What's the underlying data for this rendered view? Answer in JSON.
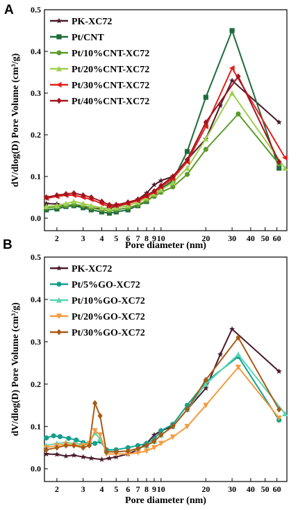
{
  "chart_data": [
    {
      "type": "line",
      "panel_label": "A",
      "xlabel": "Pore diameter (nm)",
      "ylabel": "dV/dlog(D) Pore Volume (cm³/g)",
      "xscale": "log",
      "xlim": [
        1.65,
        70
      ],
      "ylim": [
        -0.03,
        0.5
      ],
      "xticks": [
        2,
        3,
        4,
        5,
        6,
        7,
        8,
        9,
        10,
        20,
        30,
        40,
        50,
        60
      ],
      "xtick_labels": [
        "2",
        "3",
        "4",
        "5",
        "6",
        "7",
        "8",
        "9",
        "10",
        "20",
        "30",
        "40",
        "50",
        "60"
      ],
      "yticks": [
        0.0,
        0.1,
        0.2,
        0.3,
        0.4,
        0.5
      ],
      "ytick_labels": [
        "0.0",
        "0.1",
        "0.2",
        "0.3",
        "0.4",
        "0.5"
      ],
      "legend_position": "top-left",
      "series": [
        {
          "name": "PK-XC72",
          "color": "#4a1a2c",
          "marker": "star",
          "x": [
            1.7,
            2,
            2.3,
            2.6,
            3,
            3.4,
            4,
            4.5,
            5,
            6,
            7,
            8,
            9,
            10,
            12,
            15,
            20,
            25,
            30,
            62
          ],
          "y": [
            0.035,
            0.034,
            0.03,
            0.032,
            0.028,
            0.025,
            0.022,
            0.025,
            0.028,
            0.035,
            0.045,
            0.06,
            0.08,
            0.09,
            0.1,
            0.14,
            0.19,
            0.27,
            0.33,
            0.23
          ]
        },
        {
          "name": "Pt/CNT",
          "color": "#1e6b3a",
          "marker": "square",
          "x": [
            1.7,
            2,
            2.3,
            2.6,
            3,
            3.4,
            4,
            4.5,
            5,
            6,
            7,
            8,
            9,
            10,
            12,
            15,
            20,
            30,
            62
          ],
          "y": [
            0.02,
            0.022,
            0.028,
            0.03,
            0.025,
            0.02,
            0.015,
            0.012,
            0.015,
            0.02,
            0.03,
            0.04,
            0.055,
            0.07,
            0.09,
            0.16,
            0.29,
            0.45,
            0.12
          ]
        },
        {
          "name": "Pt/10%CNT-XC72",
          "color": "#5a9a2a",
          "marker": "circle",
          "x": [
            1.7,
            2,
            2.3,
            2.6,
            3,
            3.4,
            4,
            4.5,
            5,
            6,
            7,
            8,
            9,
            10,
            12,
            15,
            20,
            33,
            62
          ],
          "y": [
            0.025,
            0.027,
            0.03,
            0.033,
            0.03,
            0.025,
            0.02,
            0.018,
            0.02,
            0.025,
            0.032,
            0.042,
            0.052,
            0.062,
            0.075,
            0.105,
            0.165,
            0.25,
            0.13
          ]
        },
        {
          "name": "Pt/20%CNT-XC72",
          "color": "#9fcf4f",
          "marker": "triangle",
          "x": [
            1.7,
            2,
            2.3,
            2.6,
            3,
            3.4,
            4,
            4.5,
            5,
            6,
            7,
            8,
            9,
            10,
            12,
            15,
            20,
            30,
            68
          ],
          "y": [
            0.028,
            0.03,
            0.035,
            0.04,
            0.035,
            0.03,
            0.025,
            0.022,
            0.025,
            0.03,
            0.038,
            0.048,
            0.058,
            0.068,
            0.085,
            0.12,
            0.19,
            0.3,
            0.12
          ]
        },
        {
          "name": "Pt/30%CNT-XC72",
          "color": "#e2201c",
          "marker": "triangle-left",
          "x": [
            1.7,
            2,
            2.3,
            2.6,
            3,
            3.4,
            4,
            4.5,
            5,
            6,
            7,
            8,
            9,
            10,
            12,
            15,
            20,
            30,
            68
          ],
          "y": [
            0.048,
            0.052,
            0.055,
            0.055,
            0.05,
            0.045,
            0.035,
            0.028,
            0.03,
            0.035,
            0.042,
            0.052,
            0.062,
            0.075,
            0.095,
            0.135,
            0.22,
            0.36,
            0.145
          ]
        },
        {
          "name": "Pt/40%CNT-XC72",
          "color": "#a3141d",
          "marker": "diamond",
          "x": [
            1.7,
            2,
            2.3,
            2.6,
            3,
            3.4,
            4,
            4.5,
            5,
            6,
            7,
            8,
            9,
            10,
            12,
            15,
            20,
            33,
            62
          ],
          "y": [
            0.05,
            0.055,
            0.058,
            0.06,
            0.055,
            0.05,
            0.04,
            0.032,
            0.032,
            0.038,
            0.045,
            0.055,
            0.065,
            0.078,
            0.1,
            0.14,
            0.23,
            0.34,
            0.135
          ]
        }
      ]
    },
    {
      "type": "line",
      "panel_label": "B",
      "xlabel": "Pore diameter (nm)",
      "ylabel": "dV/dlog(D) Pore Volume (cm³/g)",
      "xscale": "log",
      "xlim": [
        1.65,
        70
      ],
      "ylim": [
        -0.03,
        0.5
      ],
      "xticks": [
        2,
        3,
        4,
        5,
        6,
        7,
        8,
        9,
        10,
        20,
        30,
        40,
        50,
        60
      ],
      "xtick_labels": [
        "2",
        "3",
        "4",
        "5",
        "6",
        "7",
        "8",
        "9",
        "10",
        "20",
        "30",
        "40",
        "50",
        "60"
      ],
      "yticks": [
        0.0,
        0.1,
        0.2,
        0.3,
        0.4,
        0.5
      ],
      "ytick_labels": [
        "0.0",
        "0.1",
        "0.2",
        "0.3",
        "0.4",
        "0.5"
      ],
      "legend_position": "top-left",
      "series": [
        {
          "name": "PK-XC72",
          "color": "#4a1a2c",
          "marker": "star",
          "x": [
            1.7,
            2,
            2.3,
            2.6,
            3,
            3.4,
            4,
            4.5,
            5,
            6,
            7,
            8,
            9,
            10,
            12,
            15,
            20,
            25,
            30,
            62
          ],
          "y": [
            0.035,
            0.034,
            0.03,
            0.032,
            0.028,
            0.025,
            0.022,
            0.025,
            0.028,
            0.035,
            0.045,
            0.06,
            0.08,
            0.09,
            0.1,
            0.14,
            0.19,
            0.27,
            0.33,
            0.23
          ]
        },
        {
          "name": "Pt/5%GO-XC72",
          "color": "#14a08c",
          "marker": "circle",
          "x": [
            1.7,
            1.9,
            2.1,
            2.4,
            2.7,
            3,
            3.3,
            3.6,
            3.9,
            4.3,
            5,
            6,
            7,
            8,
            9,
            10,
            12,
            15,
            20,
            33,
            62
          ],
          "y": [
            0.073,
            0.078,
            0.076,
            0.072,
            0.068,
            0.062,
            0.06,
            0.06,
            0.065,
            0.045,
            0.045,
            0.05,
            0.055,
            0.06,
            0.07,
            0.09,
            0.105,
            0.15,
            0.205,
            0.265,
            0.115
          ]
        },
        {
          "name": "Pt/10%GO-XC72",
          "color": "#56d6b4",
          "marker": "triangle",
          "x": [
            1.7,
            2,
            2.3,
            2.6,
            3,
            3.3,
            3.6,
            3.9,
            4.3,
            5,
            6,
            7,
            8,
            9,
            10,
            12,
            15,
            20,
            33,
            68
          ],
          "y": [
            0.055,
            0.06,
            0.062,
            0.06,
            0.058,
            0.06,
            0.085,
            0.07,
            0.042,
            0.04,
            0.042,
            0.048,
            0.055,
            0.065,
            0.08,
            0.1,
            0.14,
            0.2,
            0.27,
            0.13
          ]
        },
        {
          "name": "Pt/20%GO-XC72",
          "color": "#f59a3e",
          "marker": "triangle-down",
          "x": [
            1.7,
            2,
            2.3,
            2.6,
            3,
            3.3,
            3.6,
            3.9,
            4.3,
            5,
            6,
            7,
            8,
            9,
            10,
            12,
            15,
            20,
            33,
            62
          ],
          "y": [
            0.05,
            0.055,
            0.058,
            0.056,
            0.055,
            0.06,
            0.09,
            0.08,
            0.035,
            0.035,
            0.035,
            0.038,
            0.042,
            0.05,
            0.06,
            0.075,
            0.1,
            0.15,
            0.24,
            0.12
          ]
        },
        {
          "name": "Pt/30%GO-XC72",
          "color": "#a85a14",
          "marker": "diamond",
          "x": [
            1.7,
            2,
            2.3,
            2.6,
            3,
            3.3,
            3.6,
            3.9,
            4.3,
            5,
            6,
            7,
            8,
            9,
            10,
            12,
            15,
            20,
            33,
            62
          ],
          "y": [
            0.045,
            0.05,
            0.055,
            0.055,
            0.05,
            0.055,
            0.155,
            0.125,
            0.04,
            0.04,
            0.042,
            0.048,
            0.055,
            0.065,
            0.08,
            0.1,
            0.14,
            0.21,
            0.31,
            0.14
          ]
        }
      ]
    }
  ]
}
